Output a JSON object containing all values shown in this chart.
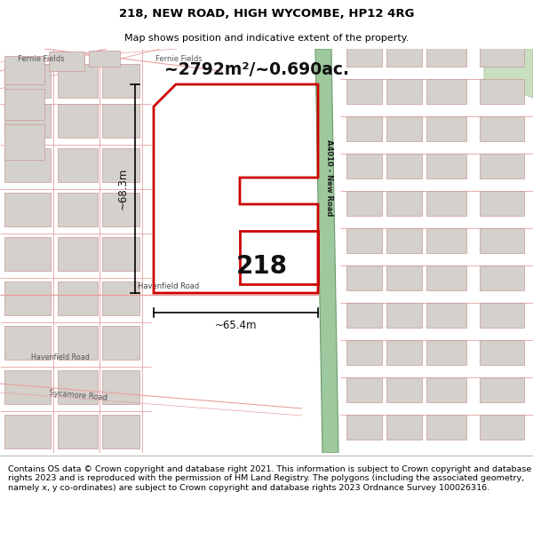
{
  "title": "218, NEW ROAD, HIGH WYCOMBE, HP12 4RG",
  "subtitle": "Map shows position and indicative extent of the property.",
  "footer": "Contains OS data © Crown copyright and database right 2021. This information is subject to Crown copyright and database rights 2023 and is reproduced with the permission of HM Land Registry. The polygons (including the associated geometry, namely x, y co-ordinates) are subject to Crown copyright and database rights 2023 Ordnance Survey 100026316.",
  "title_fontsize": 9.5,
  "subtitle_fontsize": 8,
  "footer_fontsize": 6.8,
  "map_bg": "#ece9e3",
  "road_green": "#9ec99e",
  "road_green_dark": "#6a9a6a",
  "highlight_red": "#cc0000",
  "building_fill": "#d4d0cb",
  "building_stroke": "#c8a0a0",
  "road_stroke": "#e8a0a0",
  "dim_label": "~2792m²/~0.690ac.",
  "dim_width": "~65.4m",
  "dim_height": "~68.3m",
  "label_218": "218",
  "road_label": "A4010 - New Road",
  "havenfield_label": "Havenfield Road",
  "fernie_label_1": "Fernie Fields",
  "fernie_label_2": "Fernie Fields",
  "sycamore_label": "Sycamore Road",
  "havenfield_label_2": "Havenfield Road"
}
